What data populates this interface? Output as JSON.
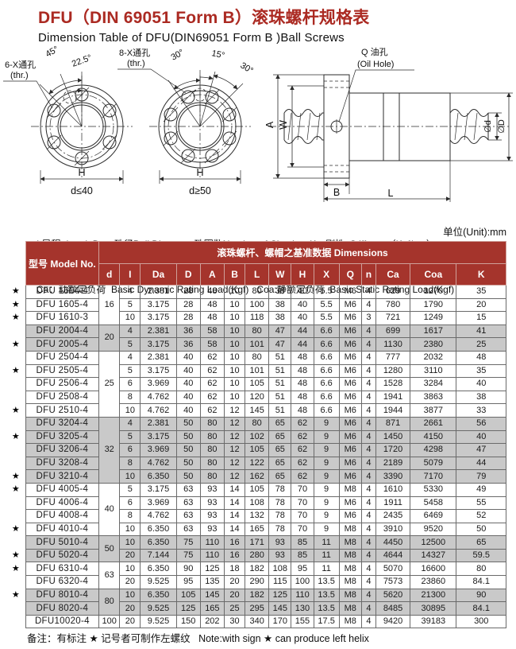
{
  "page": {
    "title": "DFU（DIN 69051 Form B）滚珠螺杆规格表",
    "subtitle": "Dimension Table of DFU(DIN69051 Form B )Ball Screws",
    "unit_note": "单位(Unit):mm",
    "footer_note": "备注：有标注 ★ 记号者可制作左螺纹   Note:with sign ★ can produce left helix"
  },
  "legend": {
    "line1": "I:导程  Lead  Da：珠径Ball Dia.    n：珠圈数Number of Circuits   K：刚性  Stiffness（Kgf/μm）",
    "line2": "Ca：动额定负荷  Basic Dynamic Rating Load(Kgf)   Coa:静额定负荷  Basic Static Rating Load(Kgf)"
  },
  "drawings": {
    "flange6": {
      "hole_label": "6-X通孔",
      "hole_label2": "(thr.)",
      "angle45": "45°",
      "angle225": "22.5°",
      "dim_h": "H",
      "dim_d": "d≤40"
    },
    "flange8": {
      "hole_label": "8-X通孔",
      "hole_label2": "(thr.)",
      "angle30l": "30°",
      "angle15": "15°",
      "angle30r": "30°",
      "dim_h": "H",
      "dim_d": "d≥50"
    },
    "side": {
      "oil_label1": "Q 油孔",
      "oil_label2": "(Oil Hole)",
      "dim_a": "A",
      "dim_w": "W",
      "dim_b": "B",
      "dim_l": "L",
      "dim_d_small": "∅d",
      "dim_d_big": "∅D"
    }
  },
  "colors": {
    "title_red": "#ab2a22",
    "header_red": "#a5342c",
    "row_shade": "#c9c9c9"
  },
  "table": {
    "star_symbol": "★",
    "header": {
      "model": "型号 Model No.",
      "dims_title": "滚珠螺杆、螺帽之基准数据  Dimensions",
      "columns": [
        "d",
        "I",
        "Da",
        "D",
        "A",
        "B",
        "L",
        "W",
        "H",
        "X",
        "Q",
        "n",
        "Ca",
        "Coa",
        "K"
      ]
    },
    "groups": [
      {
        "d": "16",
        "shaded": false,
        "rows": [
          {
            "star": true,
            "model": "DFU 1604-4",
            "values": [
              "4",
              "2.381",
              "28",
              "48",
              "10",
              "80",
              "38",
              "40",
              "5.5",
              "M6",
              "4",
              "629",
              "1270",
              "35"
            ]
          },
          {
            "star": true,
            "model": "DFU 1605-4",
            "values": [
              "5",
              "3.175",
              "28",
              "48",
              "10",
              "100",
              "38",
              "40",
              "5.5",
              "M6",
              "4",
              "780",
              "1790",
              "20"
            ]
          },
          {
            "star": true,
            "model": "DFU 1610-3",
            "values": [
              "10",
              "3.175",
              "28",
              "48",
              "10",
              "118",
              "38",
              "40",
              "5.5",
              "M6",
              "3",
              "721",
              "1249",
              "15"
            ]
          }
        ]
      },
      {
        "d": "20",
        "shaded": true,
        "rows": [
          {
            "star": false,
            "model": "DFU 2004-4",
            "values": [
              "4",
              "2.381",
              "36",
              "58",
              "10",
              "80",
              "47",
              "44",
              "6.6",
              "M6",
              "4",
              "699",
              "1617",
              "41"
            ]
          },
          {
            "star": true,
            "model": "DFU 2005-4",
            "values": [
              "5",
              "3.175",
              "36",
              "58",
              "10",
              "101",
              "47",
              "44",
              "6.6",
              "M6",
              "4",
              "1130",
              "2380",
              "25"
            ]
          }
        ]
      },
      {
        "d": "25",
        "shaded": false,
        "rows": [
          {
            "star": false,
            "model": "DFU 2504-4",
            "values": [
              "4",
              "2.381",
              "40",
              "62",
              "10",
              "80",
              "51",
              "48",
              "6.6",
              "M6",
              "4",
              "777",
              "2032",
              "48"
            ]
          },
          {
            "star": true,
            "model": "DFU 2505-4",
            "values": [
              "5",
              "3.175",
              "40",
              "62",
              "10",
              "101",
              "51",
              "48",
              "6.6",
              "M6",
              "4",
              "1280",
              "3110",
              "35"
            ]
          },
          {
            "star": false,
            "model": "DFU 2506-4",
            "values": [
              "6",
              "3.969",
              "40",
              "62",
              "10",
              "105",
              "51",
              "48",
              "6.6",
              "M6",
              "4",
              "1528",
              "3284",
              "40"
            ]
          },
          {
            "star": false,
            "model": "DFU 2508-4",
            "values": [
              "8",
              "4.762",
              "40",
              "62",
              "10",
              "120",
              "51",
              "48",
              "6.6",
              "M6",
              "4",
              "1941",
              "3863",
              "38"
            ]
          },
          {
            "star": true,
            "model": "DFU 2510-4",
            "values": [
              "10",
              "4.762",
              "40",
              "62",
              "12",
              "145",
              "51",
              "48",
              "6.6",
              "M6",
              "4",
              "1944",
              "3877",
              "33"
            ]
          }
        ]
      },
      {
        "d": "32",
        "shaded": true,
        "rows": [
          {
            "star": false,
            "model": "DFU 3204-4",
            "values": [
              "4",
              "2.381",
              "50",
              "80",
              "12",
              "80",
              "65",
              "62",
              "9",
              "M6",
              "4",
              "871",
              "2661",
              "56"
            ]
          },
          {
            "star": true,
            "model": "DFU 3205-4",
            "values": [
              "5",
              "3.175",
              "50",
              "80",
              "12",
              "102",
              "65",
              "62",
              "9",
              "M6",
              "4",
              "1450",
              "4150",
              "40"
            ]
          },
          {
            "star": false,
            "model": "DFU 3206-4",
            "values": [
              "6",
              "3.969",
              "50",
              "80",
              "12",
              "105",
              "65",
              "62",
              "9",
              "M6",
              "4",
              "1720",
              "4298",
              "47"
            ]
          },
          {
            "star": false,
            "model": "DFU 3208-4",
            "values": [
              "8",
              "4.762",
              "50",
              "80",
              "12",
              "122",
              "65",
              "62",
              "9",
              "M6",
              "4",
              "2189",
              "5079",
              "44"
            ]
          },
          {
            "star": true,
            "model": "DFU 3210-4",
            "values": [
              "10",
              "6.350",
              "50",
              "80",
              "12",
              "162",
              "65",
              "62",
              "9",
              "M6",
              "4",
              "3390",
              "7170",
              "79"
            ]
          }
        ]
      },
      {
        "d": "40",
        "shaded": false,
        "rows": [
          {
            "star": true,
            "model": "DFU 4005-4",
            "values": [
              "5",
              "3.175",
              "63",
              "93",
              "14",
              "105",
              "78",
              "70",
              "9",
              "M8",
              "4",
              "1610",
              "5330",
              "49"
            ]
          },
          {
            "star": false,
            "model": "DFU 4006-4",
            "values": [
              "6",
              "3.969",
              "63",
              "93",
              "14",
              "108",
              "78",
              "70",
              "9",
              "M6",
              "4",
              "1911",
              "5458",
              "55"
            ]
          },
          {
            "star": false,
            "model": "DFU 4008-4",
            "values": [
              "8",
              "4.762",
              "63",
              "93",
              "14",
              "132",
              "78",
              "70",
              "9",
              "M6",
              "4",
              "2435",
              "6469",
              "52"
            ]
          },
          {
            "star": true,
            "model": "DFU 4010-4",
            "values": [
              "10",
              "6.350",
              "63",
              "93",
              "14",
              "165",
              "78",
              "70",
              "9",
              "M8",
              "4",
              "3910",
              "9520",
              "50"
            ]
          }
        ]
      },
      {
        "d": "50",
        "shaded": true,
        "rows": [
          {
            "star": false,
            "model": "DFU 5010-4",
            "values": [
              "10",
              "6.350",
              "75",
              "110",
              "16",
              "171",
              "93",
              "85",
              "11",
              "M8",
              "4",
              "4450",
              "12500",
              "65"
            ]
          },
          {
            "star": true,
            "model": "DFU 5020-4",
            "values": [
              "20",
              "7.144",
              "75",
              "110",
              "16",
              "280",
              "93",
              "85",
              "11",
              "M8",
              "4",
              "4644",
              "14327",
              "59.5"
            ]
          }
        ]
      },
      {
        "d": "63",
        "shaded": false,
        "rows": [
          {
            "star": true,
            "model": "DFU 6310-4",
            "values": [
              "10",
              "6.350",
              "90",
              "125",
              "18",
              "182",
              "108",
              "95",
              "11",
              "M8",
              "4",
              "5070",
              "16600",
              "80"
            ]
          },
          {
            "star": false,
            "model": "DFU 6320-4",
            "values": [
              "20",
              "9.525",
              "95",
              "135",
              "20",
              "290",
              "115",
              "100",
              "13.5",
              "M8",
              "4",
              "7573",
              "23860",
              "84.1"
            ]
          }
        ]
      },
      {
        "d": "80",
        "shaded": true,
        "rows": [
          {
            "star": true,
            "model": "DFU 8010-4",
            "values": [
              "10",
              "6.350",
              "105",
              "145",
              "20",
              "182",
              "125",
              "110",
              "13.5",
              "M8",
              "4",
              "5620",
              "21300",
              "90"
            ]
          },
          {
            "star": false,
            "model": "DFU 8020-4",
            "values": [
              "20",
              "9.525",
              "125",
              "165",
              "25",
              "295",
              "145",
              "130",
              "13.5",
              "M8",
              "4",
              "8485",
              "30895",
              "84.1"
            ]
          }
        ]
      },
      {
        "d": "100",
        "shaded": false,
        "rows": [
          {
            "star": false,
            "model": "DFU10020-4",
            "values": [
              "20",
              "9.525",
              "150",
              "202",
              "30",
              "340",
              "170",
              "155",
              "17.5",
              "M8",
              "4",
              "9420",
              "39183",
              "300"
            ]
          }
        ]
      }
    ]
  }
}
